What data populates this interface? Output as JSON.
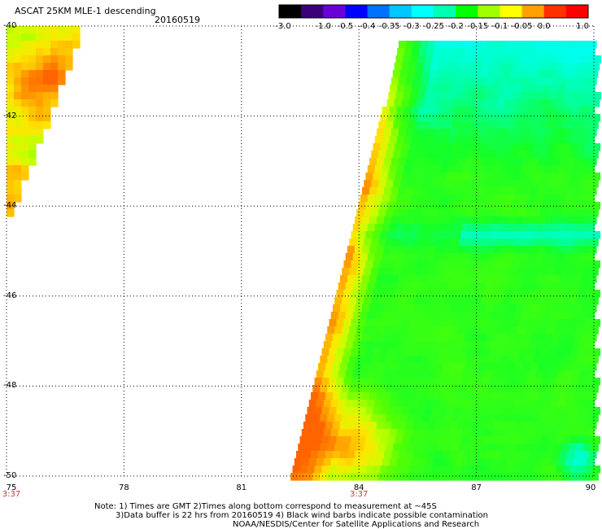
{
  "header": {
    "title": "ASCAT 25KM MLE-1 descending",
    "date": "20160519"
  },
  "colorbar": {
    "labels": [
      "-3.0",
      "-1.0",
      "-0.5",
      "-0.4",
      "-0.35",
      "-0.3",
      "-0.25",
      "-0.2",
      "-0.15",
      "-0.1",
      "-0.05",
      "0.0",
      "1.0"
    ],
    "colors": [
      "#000000",
      "#3a007a",
      "#6a00d8",
      "#0000ff",
      "#0070ff",
      "#00c8ff",
      "#00ffff",
      "#00ffb0",
      "#00ff00",
      "#a0ff00",
      "#ffff00",
      "#ffa000",
      "#ff3000",
      "#ff0000"
    ]
  },
  "map": {
    "lon_labels": [
      "75",
      "78",
      "81",
      "84",
      "87",
      "90"
    ],
    "lat_labels": [
      "-40",
      "-42",
      "-44",
      "-46",
      "-48",
      "-50"
    ],
    "lon_range": [
      75,
      90
    ],
    "lat_range": [
      -40,
      -50
    ],
    "time_labels": [
      {
        "lon": 75,
        "text": "3:37"
      },
      {
        "lon": 84,
        "text": "3:37"
      }
    ],
    "gridlines": true
  },
  "notes": {
    "line1": "Note: 1) Times are GMT 2)Times along bottom correspond to measurement at ~45S",
    "line2": "3)Data buffer is 22 hrs from 20160519 4) Black wind barbs indicate possible contamination",
    "line3": "NOAA/NESDIS/Center for Satellite Applications and Research"
  }
}
